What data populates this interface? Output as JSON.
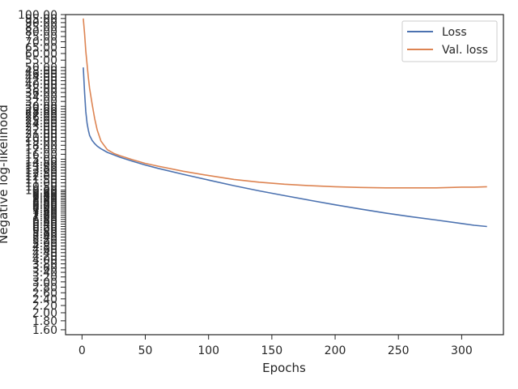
{
  "chart_data": {
    "type": "line",
    "xlabel": "Epochs",
    "ylabel": "Negative log-likelihood",
    "yscale": "log",
    "xlim": [
      -13,
      333
    ],
    "ylim": [
      1.5,
      100
    ],
    "xticks": [
      0,
      50,
      100,
      150,
      200,
      250,
      300
    ],
    "yticks_visible": [
      1.6,
      1.8,
      2.0,
      2.2,
      2.4,
      2.6,
      2.8,
      3.0
    ],
    "yticks_overlapping": [
      3.2,
      3.4,
      3.6,
      3.8,
      4.0,
      4.2,
      4.4,
      4.6,
      4.8,
      5.0,
      5.2,
      5.4,
      5.6,
      5.8,
      6.0,
      6.2,
      6.4,
      6.6,
      6.8,
      7.0,
      7.2,
      7.4,
      7.6,
      7.8,
      8.0,
      8.2,
      8.4,
      8.6,
      8.8,
      9.0,
      9.2,
      9.4,
      9.6,
      9.8,
      10.0,
      10.5,
      11.0,
      11.5,
      12.0,
      12.5,
      13.0,
      13.5,
      14.0,
      14.5,
      15.0,
      16.0,
      17.0,
      18.0,
      19.0,
      20.0,
      21.0,
      22.0,
      23.0,
      24.0,
      25.0,
      26.0,
      27.0,
      28.0,
      29.0,
      30.0,
      32.0,
      34.0,
      36.0,
      38.0,
      40.0,
      42.0,
      44.0,
      46.0,
      48.0,
      50.0,
      55.0,
      60.0,
      65.0,
      70.0,
      75.0,
      80.0,
      85.0,
      90.0,
      95.0,
      100.0
    ],
    "grid": false,
    "legend_position": "top-right",
    "x": [
      1,
      2,
      3,
      4,
      5,
      6,
      8,
      10,
      12,
      15,
      20,
      25,
      30,
      40,
      50,
      60,
      80,
      100,
      120,
      140,
      160,
      180,
      200,
      220,
      240,
      260,
      280,
      300,
      310,
      320
    ],
    "series": [
      {
        "name": "Loss",
        "color": "#4c72b0",
        "values": [
          50.0,
          36.0,
          28.0,
          24.0,
          22.0,
          20.5,
          19.2,
          18.4,
          17.8,
          17.2,
          16.4,
          15.9,
          15.4,
          14.6,
          13.9,
          13.3,
          12.3,
          11.4,
          10.6,
          9.9,
          9.3,
          8.75,
          8.25,
          7.8,
          7.4,
          7.05,
          6.75,
          6.45,
          6.3,
          6.2
        ]
      },
      {
        "name": "Val. loss",
        "color": "#dd8452",
        "values": [
          95.0,
          78.0,
          62.0,
          52.0,
          44.0,
          38.0,
          31.0,
          25.5,
          22.0,
          19.0,
          17.0,
          16.2,
          15.7,
          14.9,
          14.2,
          13.7,
          12.8,
          12.1,
          11.5,
          11.1,
          10.8,
          10.6,
          10.45,
          10.35,
          10.3,
          10.3,
          10.3,
          10.4,
          10.4,
          10.45
        ]
      }
    ]
  }
}
